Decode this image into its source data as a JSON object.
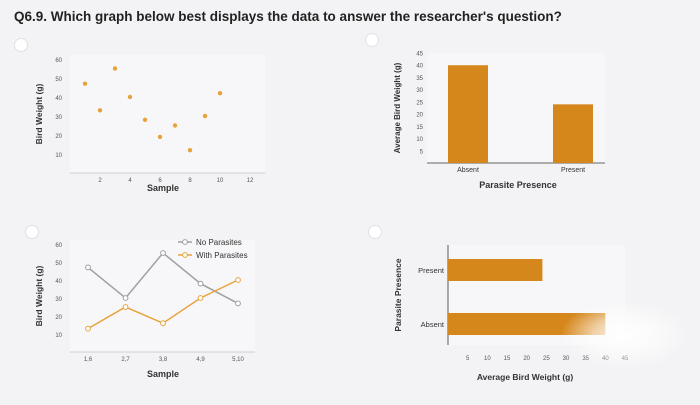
{
  "question": {
    "text": "Q6.9. Which graph below best displays the data to answer the researcher's question?"
  },
  "options": [
    {
      "id": "A",
      "chart_data": {
        "type": "scatter",
        "xlabel": "Sample",
        "ylabel": "Bird Weight (g)",
        "x_ticks": [
          "2",
          "4",
          "6",
          "8",
          "10",
          "12"
        ],
        "y_ticks": [
          "10",
          "20",
          "30",
          "40",
          "50",
          "60"
        ],
        "xlim": [
          0,
          13
        ],
        "ylim": [
          0,
          60
        ],
        "points": [
          {
            "x": 1,
            "y": 47
          },
          {
            "x": 2,
            "y": 33
          },
          {
            "x": 3,
            "y": 55
          },
          {
            "x": 4,
            "y": 40
          },
          {
            "x": 5,
            "y": 28
          },
          {
            "x": 6,
            "y": 19
          },
          {
            "x": 7,
            "y": 25
          },
          {
            "x": 8,
            "y": 12
          },
          {
            "x": 9,
            "y": 30
          },
          {
            "x": 10,
            "y": 42
          }
        ],
        "point_color": "#e8a23c"
      }
    },
    {
      "id": "B",
      "chart_data": {
        "type": "bar",
        "xlabel": "Parasite Presence",
        "ylabel": "Average Bird Weight (g)",
        "categories": [
          "Absent",
          "Present"
        ],
        "values": [
          40,
          24
        ],
        "y_ticks": [
          "5",
          "10",
          "15",
          "20",
          "25",
          "30",
          "35",
          "40",
          "45"
        ],
        "ylim": [
          0,
          45
        ],
        "bar_color": "#d6871b"
      }
    },
    {
      "id": "C",
      "chart_data": {
        "type": "line",
        "xlabel": "Sample",
        "ylabel": "Bird Weight (g)",
        "categories": [
          "1,6",
          "2,7",
          "3,8",
          "4,9",
          "5,10"
        ],
        "y_ticks": [
          "10",
          "20",
          "30",
          "40",
          "50",
          "60"
        ],
        "ylim": [
          0,
          60
        ],
        "series": [
          {
            "name": "No Parasites",
            "values": [
              47,
              30,
              55,
              38,
              27
            ],
            "color": "#a0a0a0"
          },
          {
            "name": "With Parasites",
            "values": [
              13,
              25,
              16,
              30,
              40
            ],
            "color": "#e8a23c"
          }
        ]
      }
    },
    {
      "id": "D",
      "chart_data": {
        "type": "bar",
        "orientation": "horizontal",
        "xlabel": "Average Bird Weight (g)",
        "ylabel": "Parasite Presence",
        "categories": [
          "Present",
          "Absent"
        ],
        "values": [
          24,
          40
        ],
        "x_ticks": [
          "5",
          "10",
          "15",
          "20",
          "25",
          "30",
          "35",
          "40",
          "45"
        ],
        "xlim": [
          0,
          45
        ],
        "bar_color": "#d6871b"
      }
    }
  ],
  "colors": {
    "bar": "#d6871b",
    "point": "#e8a23c",
    "grey_line": "#a0a0a0",
    "radio_fill": "#ffffff"
  }
}
